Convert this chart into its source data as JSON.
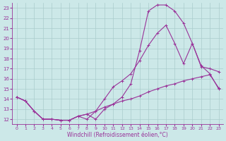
{
  "xlabel": "Windchill (Refroidissement éolien,°C)",
  "ylabel": "",
  "bg_color": "#cce8e8",
  "line_color": "#993399",
  "grid_color": "#aacccc",
  "xlim": [
    -0.5,
    23.5
  ],
  "ylim": [
    11.5,
    23.5
  ],
  "xticks": [
    0,
    1,
    2,
    3,
    4,
    5,
    6,
    7,
    8,
    9,
    10,
    11,
    12,
    13,
    14,
    15,
    16,
    17,
    18,
    19,
    20,
    21,
    22,
    23
  ],
  "yticks": [
    12,
    13,
    14,
    15,
    16,
    17,
    18,
    19,
    20,
    21,
    22,
    23
  ],
  "curve1_x": [
    0,
    1,
    2,
    3,
    4,
    5,
    6,
    7,
    8,
    9,
    10,
    11,
    12,
    13,
    14,
    15,
    16,
    17,
    18,
    19,
    20,
    21,
    22,
    23
  ],
  "curve1_y": [
    14.2,
    13.8,
    12.8,
    12.0,
    12.0,
    11.9,
    11.9,
    12.3,
    12.5,
    12.0,
    13.0,
    13.5,
    14.2,
    15.5,
    18.8,
    22.7,
    23.3,
    23.3,
    22.7,
    21.5,
    19.5,
    17.3,
    16.5,
    15.0
  ],
  "curve2_x": [
    0,
    1,
    2,
    3,
    4,
    5,
    6,
    7,
    8,
    9,
    10,
    11,
    12,
    13,
    14,
    15,
    16,
    17,
    18,
    19,
    20,
    21,
    22,
    23
  ],
  "curve2_y": [
    14.2,
    13.8,
    12.8,
    12.0,
    12.0,
    11.9,
    11.9,
    12.3,
    12.5,
    12.8,
    14.0,
    15.2,
    15.8,
    16.5,
    17.8,
    19.3,
    20.5,
    21.3,
    19.5,
    17.5,
    19.5,
    17.2,
    17.0,
    16.7
  ],
  "curve3_x": [
    0,
    1,
    2,
    3,
    4,
    5,
    6,
    7,
    8,
    9,
    10,
    11,
    12,
    13,
    14,
    15,
    16,
    17,
    18,
    19,
    20,
    21,
    22,
    23
  ],
  "curve3_y": [
    14.2,
    13.8,
    12.8,
    12.0,
    12.0,
    11.9,
    11.9,
    12.3,
    12.0,
    12.8,
    13.2,
    13.5,
    13.8,
    14.0,
    14.3,
    14.7,
    15.0,
    15.3,
    15.5,
    15.8,
    16.0,
    16.2,
    16.4,
    15.1
  ]
}
